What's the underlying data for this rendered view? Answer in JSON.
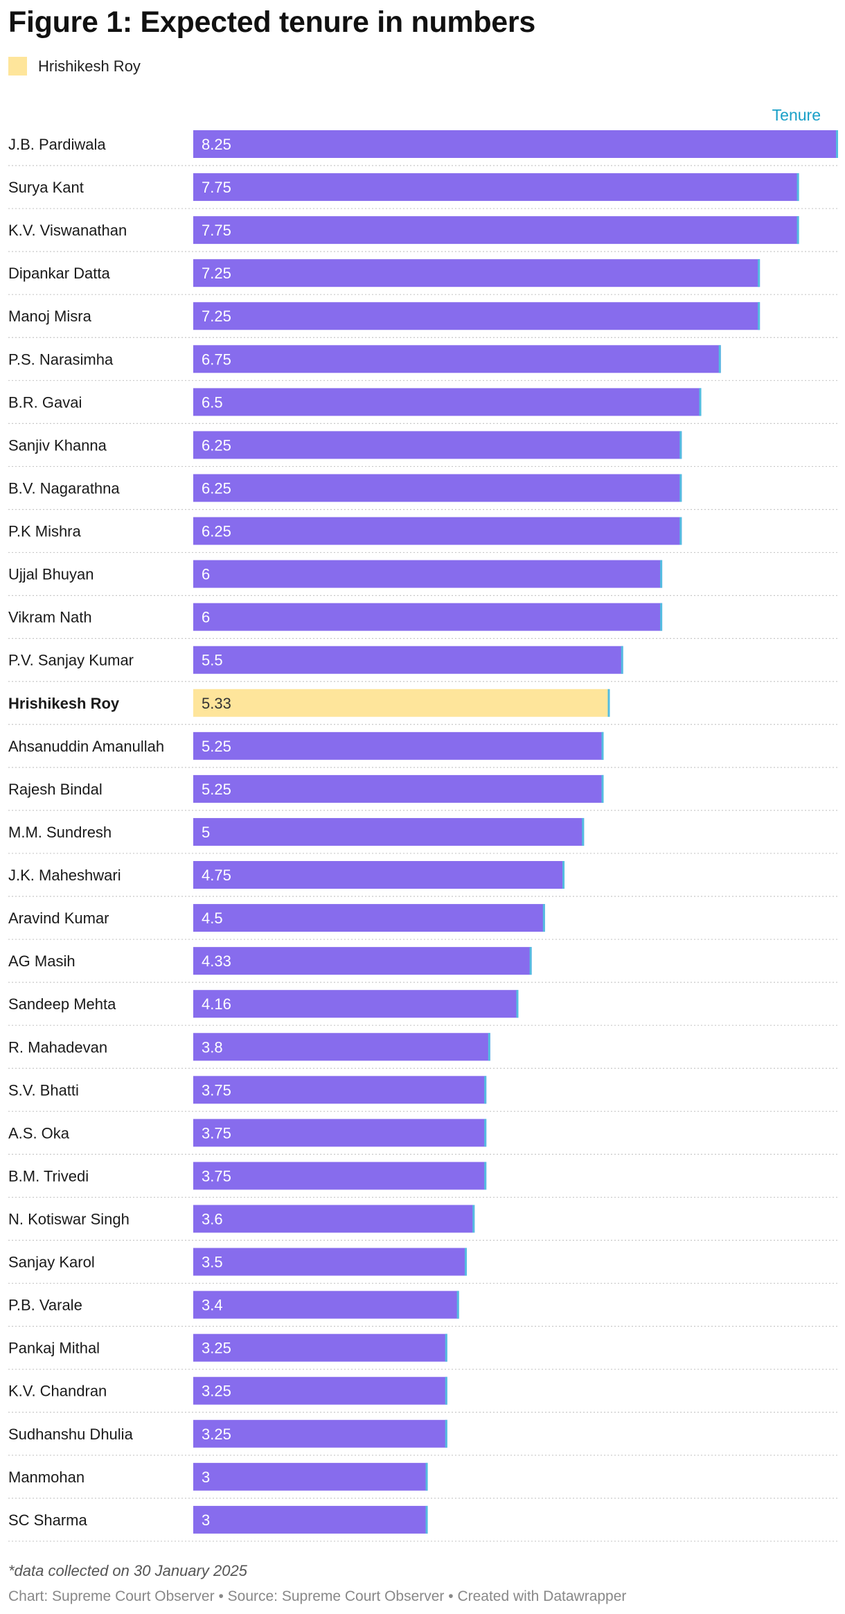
{
  "title": "Figure 1: Expected tenure in numbers",
  "legend": [
    {
      "label": "Hrishikesh Roy",
      "color": "#fee59b"
    }
  ],
  "column_header": "Tenure",
  "footnote": "*data collected on 30 January 2025",
  "credits": "Chart: Supreme Court Observer • Source: Supreme Court Observer • Created with Datawrapper",
  "colors": {
    "bar": "#876ced",
    "highlight": "#fee59b",
    "bar_end": "#54bde0",
    "header": "#1aa0c8",
    "separator": "#c8c8c8"
  },
  "chart_data": {
    "type": "bar",
    "orientation": "horizontal",
    "categories": [
      "J.B. Pardiwala",
      "Surya Kant",
      "K.V. Viswanathan",
      "Dipankar Datta",
      "Manoj Misra",
      "P.S. Narasimha",
      "B.R. Gavai",
      "Sanjiv Khanna",
      "B.V. Nagarathna",
      "P.K Mishra",
      "Ujjal Bhuyan",
      "Vikram Nath",
      "P.V. Sanjay Kumar",
      "Hrishikesh Roy",
      "Ahsanuddin Amanullah",
      "Rajesh Bindal",
      "M.M. Sundresh",
      "J.K. Maheshwari",
      "Aravind Kumar",
      "AG Masih",
      "Sandeep Mehta",
      "R. Mahadevan",
      "S.V. Bhatti",
      "A.S. Oka",
      "B.M. Trivedi",
      "N. Kotiswar Singh",
      "Sanjay Karol",
      "P.B. Varale",
      "Pankaj Mithal",
      "K.V. Chandran",
      "Sudhanshu Dhulia",
      "Manmohan",
      "SC Sharma"
    ],
    "values": [
      8.25,
      7.75,
      7.75,
      7.25,
      7.25,
      6.75,
      6.5,
      6.25,
      6.25,
      6.25,
      6,
      6,
      5.5,
      5.33,
      5.25,
      5.25,
      5,
      4.75,
      4.5,
      4.33,
      4.16,
      3.8,
      3.75,
      3.75,
      3.75,
      3.6,
      3.5,
      3.4,
      3.25,
      3.25,
      3.25,
      3,
      3
    ],
    "labels": [
      "8.25",
      "7.75",
      "7.75",
      "7.25",
      "7.25",
      "6.75",
      "6.5",
      "6.25",
      "6.25",
      "6.25",
      "6",
      "6",
      "5.5",
      "5.33",
      "5.25",
      "5.25",
      "5",
      "4.75",
      "4.5",
      "4.33",
      "4.16",
      "3.8",
      "3.75",
      "3.75",
      "3.75",
      "3.6",
      "3.5",
      "3.4",
      "3.25",
      "3.25",
      "3.25",
      "3",
      "3"
    ],
    "highlighted": [
      "Hrishikesh Roy"
    ],
    "xlim": [
      0,
      8.25
    ],
    "series": [
      {
        "name": "Tenure",
        "values": [
          8.25,
          7.75,
          7.75,
          7.25,
          7.25,
          6.75,
          6.5,
          6.25,
          6.25,
          6.25,
          6,
          6,
          5.5,
          5.33,
          5.25,
          5.25,
          5,
          4.75,
          4.5,
          4.33,
          4.16,
          3.8,
          3.75,
          3.75,
          3.75,
          3.6,
          3.5,
          3.4,
          3.25,
          3.25,
          3.25,
          3,
          3
        ]
      }
    ],
    "grid": false
  }
}
